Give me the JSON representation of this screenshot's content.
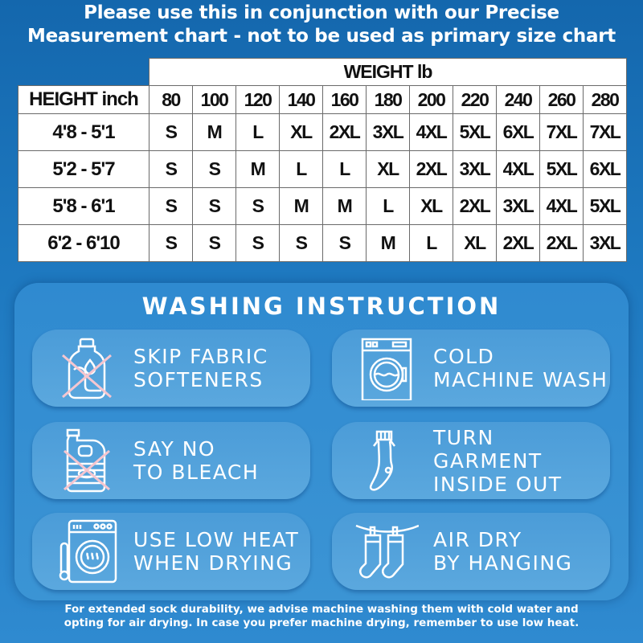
{
  "title": [
    "Please use this in conjunction with our Precise",
    "Measurement chart - not to be used as primary size chart"
  ],
  "size_table": {
    "weight_header": "WEIGHT lb",
    "height_header": "HEIGHT inch",
    "weights": [
      "80",
      "100",
      "120",
      "140",
      "160",
      "180",
      "200",
      "220",
      "240",
      "260",
      "280"
    ],
    "rows": [
      {
        "height": "4'8 - 5'1",
        "sizes": [
          "S",
          "M",
          "L",
          "XL",
          "2XL",
          "3XL",
          "4XL",
          "5XL",
          "6XL",
          "7XL",
          "7XL"
        ]
      },
      {
        "height": "5'2 - 5'7",
        "sizes": [
          "S",
          "S",
          "M",
          "L",
          "L",
          "XL",
          "2XL",
          "3XL",
          "4XL",
          "5XL",
          "6XL"
        ]
      },
      {
        "height": "5'8 - 6'1",
        "sizes": [
          "S",
          "S",
          "S",
          "M",
          "M",
          "L",
          "XL",
          "2XL",
          "3XL",
          "4XL",
          "5XL"
        ]
      },
      {
        "height": "6'2 - 6'10",
        "sizes": [
          "S",
          "S",
          "S",
          "S",
          "S",
          "M",
          "L",
          "XL",
          "2XL",
          "2XL",
          "3XL"
        ]
      }
    ]
  },
  "washing": {
    "title": "WASHING INSTRUCTION",
    "cards": [
      {
        "icon": "no-softener-icon",
        "lines": [
          "SKIP FABRIC",
          "SOFTENERS"
        ]
      },
      {
        "icon": "washing-machine-icon",
        "lines": [
          "COLD",
          "MACHINE WASH"
        ]
      },
      {
        "icon": "no-bleach-icon",
        "lines": [
          "SAY NO",
          "TO BLEACH"
        ]
      },
      {
        "icon": "sock-inside-out-icon",
        "lines": [
          "TURN",
          "GARMENT",
          "INSIDE OUT"
        ]
      },
      {
        "icon": "dryer-low-heat-icon",
        "lines": [
          "USE LOW HEAT",
          "WHEN DRYING"
        ]
      },
      {
        "icon": "hanging-socks-icon",
        "lines": [
          "AIR DRY",
          "BY HANGING"
        ]
      }
    ]
  },
  "footer": [
    "For extended sock durability, we advise machine washing them with cold water and",
    "opting for air drying. In case you prefer machine drying, remember to use low heat."
  ],
  "colors": {
    "background": "#1d78bf",
    "card": "#55a3dc",
    "cross": "#f5c6d0"
  }
}
